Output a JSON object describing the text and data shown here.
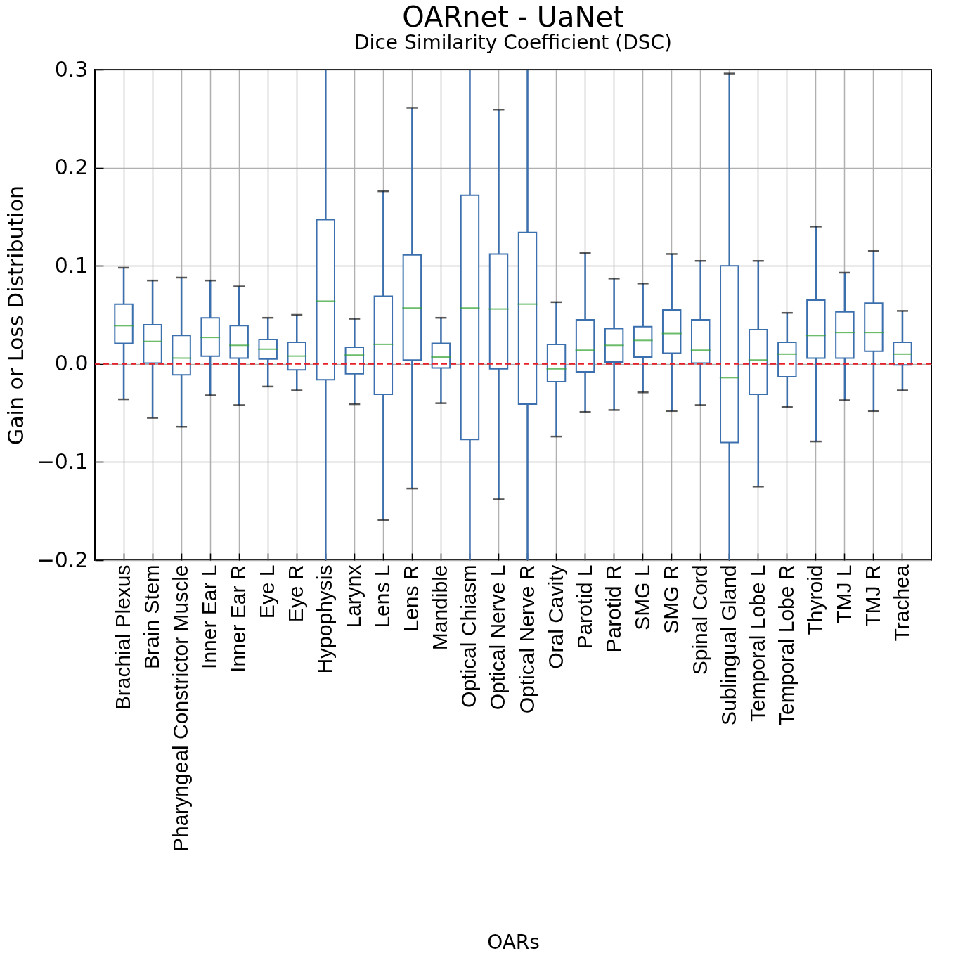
{
  "chart_data": {
    "type": "box",
    "title": "OARnet - UaNet",
    "subtitle": "Dice Similarity Coefficient (DSC)",
    "xlabel": "OARs",
    "ylabel": "Gain or Loss Distribution",
    "categories": [
      "Brachial Plexus",
      "Brain Stem",
      "Pharyngeal Constrictor Muscle",
      "Inner Ear L",
      "Inner Ear R",
      "Eye L",
      "Eye R",
      "Hypophysis",
      "Larynx",
      "Lens L",
      "Lens R",
      "Mandible",
      "Optical Chiasm",
      "Optical Nerve L",
      "Optical Nerve R",
      "Oral Cavity",
      "Parotid L",
      "Parotid R",
      "SMG L",
      "SMG R",
      "Spinal Cord",
      "Sublingual Gland",
      "Temporal Lobe L",
      "Temporal Lobe R",
      "Thyroid",
      "TMJ L",
      "TMJ R",
      "Trachea"
    ],
    "series": [
      {
        "color": "#3b6fad",
        "boxes": [
          {
            "low": -0.036,
            "q1": 0.021,
            "median": 0.039,
            "q3": 0.061,
            "high": 0.098
          },
          {
            "low": -0.055,
            "q1": 0.001,
            "median": 0.023,
            "q3": 0.04,
            "high": 0.085
          },
          {
            "low": -0.064,
            "q1": -0.011,
            "median": 0.006,
            "q3": 0.029,
            "high": 0.088
          },
          {
            "low": -0.032,
            "q1": 0.008,
            "median": 0.027,
            "q3": 0.047,
            "high": 0.085
          },
          {
            "low": -0.042,
            "q1": 0.006,
            "median": 0.019,
            "q3": 0.039,
            "high": 0.079
          },
          {
            "low": -0.023,
            "q1": 0.005,
            "median": 0.015,
            "q3": 0.025,
            "high": 0.047
          },
          {
            "low": -0.027,
            "q1": -0.006,
            "median": 0.008,
            "q3": 0.022,
            "high": 0.05
          },
          {
            "low": -0.2,
            "q1": -0.016,
            "median": 0.064,
            "q3": 0.147,
            "high": 0.3
          },
          {
            "low": -0.041,
            "q1": -0.01,
            "median": 0.009,
            "q3": 0.017,
            "high": 0.046
          },
          {
            "low": -0.159,
            "q1": -0.031,
            "median": 0.02,
            "q3": 0.069,
            "high": 0.176
          },
          {
            "low": -0.127,
            "q1": 0.004,
            "median": 0.057,
            "q3": 0.111,
            "high": 0.261
          },
          {
            "low": -0.04,
            "q1": -0.004,
            "median": 0.007,
            "q3": 0.021,
            "high": 0.047
          },
          {
            "low": -0.2,
            "q1": -0.077,
            "median": 0.057,
            "q3": 0.172,
            "high": 0.3
          },
          {
            "low": -0.138,
            "q1": -0.005,
            "median": 0.056,
            "q3": 0.112,
            "high": 0.259
          },
          {
            "low": -0.2,
            "q1": -0.041,
            "median": 0.061,
            "q3": 0.134,
            "high": 0.3
          },
          {
            "low": -0.074,
            "q1": -0.018,
            "median": -0.005,
            "q3": 0.02,
            "high": 0.063
          },
          {
            "low": -0.049,
            "q1": -0.008,
            "median": 0.014,
            "q3": 0.045,
            "high": 0.113
          },
          {
            "low": -0.047,
            "q1": 0.002,
            "median": 0.019,
            "q3": 0.036,
            "high": 0.087
          },
          {
            "low": -0.029,
            "q1": 0.007,
            "median": 0.024,
            "q3": 0.038,
            "high": 0.082
          },
          {
            "low": -0.048,
            "q1": 0.011,
            "median": 0.031,
            "q3": 0.055,
            "high": 0.112
          },
          {
            "low": -0.042,
            "q1": 0.001,
            "median": 0.014,
            "q3": 0.045,
            "high": 0.105
          },
          {
            "low": -0.2,
            "q1": -0.08,
            "median": -0.014,
            "q3": 0.1,
            "high": 0.296
          },
          {
            "low": -0.125,
            "q1": -0.031,
            "median": 0.004,
            "q3": 0.035,
            "high": 0.105
          },
          {
            "low": -0.044,
            "q1": -0.013,
            "median": 0.01,
            "q3": 0.022,
            "high": 0.052
          },
          {
            "low": -0.079,
            "q1": 0.006,
            "median": 0.029,
            "q3": 0.065,
            "high": 0.14
          },
          {
            "low": -0.037,
            "q1": 0.006,
            "median": 0.032,
            "q3": 0.053,
            "high": 0.093
          },
          {
            "low": -0.048,
            "q1": 0.013,
            "median": 0.032,
            "q3": 0.062,
            "high": 0.115
          },
          {
            "low": -0.027,
            "q1": -0.001,
            "median": 0.01,
            "q3": 0.022,
            "high": 0.054
          }
        ]
      }
    ],
    "ylim": [
      -0.2,
      0.3
    ],
    "yticks": [
      {
        "value": -0.2,
        "label": "−0.2"
      },
      {
        "value": -0.1,
        "label": "−0.1"
      },
      {
        "value": 0,
        "label": "0.0"
      },
      0.1,
      0.2,
      0.3
    ],
    "ref_lines": [
      {
        "axis": "y",
        "value": 0,
        "color": "#e8202a",
        "line_style": "dashed"
      }
    ],
    "grid": true
  }
}
